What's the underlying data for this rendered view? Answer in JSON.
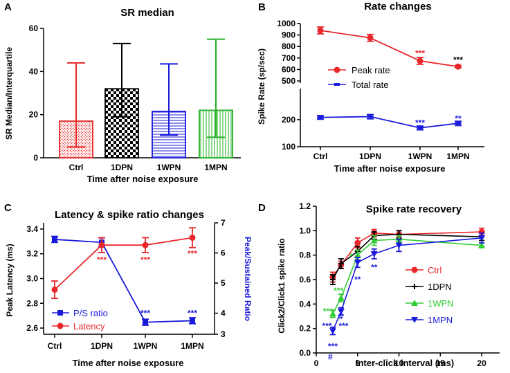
{
  "chart_data": [
    {
      "panel": "A",
      "type": "bar",
      "title": "SR median",
      "xlabel": "Time after noise exposure",
      "ylabel": "SR Median/Interquartile",
      "ylim": [
        0,
        60
      ],
      "yticks": [
        0,
        20,
        40,
        60
      ],
      "categories": [
        "Ctrl",
        "1DPN",
        "1WPN",
        "1MPN"
      ],
      "values": [
        17,
        32,
        21.5,
        22
      ],
      "err_low": [
        5,
        19,
        10.5,
        9.5
      ],
      "err_high": [
        44,
        53,
        43.5,
        55
      ],
      "colors": [
        "#e8272a",
        "#000000",
        "#1a1adb",
        "#22b022"
      ],
      "patterns": [
        "dots",
        "checker",
        "hlines",
        "vlines"
      ]
    },
    {
      "panel": "B",
      "type": "line",
      "title": "Rate changes",
      "xlabel": "Time after noise exposure",
      "ylabel": "Spike Rate (sp/sec)",
      "categories": [
        "Ctrl",
        "1DPN",
        "1WPN",
        "1MPN"
      ],
      "upper_ylim": [
        500,
        1000
      ],
      "upper_yticks": [
        500,
        600,
        700,
        800,
        900,
        1000
      ],
      "lower_ylim": [
        100,
        300
      ],
      "lower_yticks": [
        100,
        200
      ],
      "series": [
        {
          "name": "Peak rate",
          "color": "#e8272a",
          "marker": "circle",
          "values": [
            940,
            875,
            675,
            625
          ],
          "err": [
            30,
            30,
            30,
            10
          ]
        },
        {
          "name": "Total rate",
          "color": "#1a1adb",
          "marker": "dash",
          "values": [
            212,
            216,
            162,
            182
          ],
          "err": [
            10,
            12,
            8,
            10
          ]
        }
      ],
      "annotations": [
        {
          "text": "***",
          "x": "1WPN",
          "y": 740,
          "color": "#e8272a"
        },
        {
          "text": "***",
          "x": "1MPN",
          "y": 685,
          "color": "#000000"
        },
        {
          "text": "***",
          "x": "1WPN",
          "y": 185,
          "color": "#1a1adb"
        },
        {
          "text": "**",
          "x": "1MPN",
          "y": 205,
          "color": "#1a1adb"
        }
      ]
    },
    {
      "panel": "C",
      "type": "line",
      "title": "Latency & spike ratio changes",
      "xlabel": "Time after noise exposure",
      "ylabel": "Peak Latency (ms)",
      "ylabel_right": "Peak/Sustained Ratio",
      "categories": [
        "Ctrl",
        "1DPN",
        "1WPN",
        "1MPN"
      ],
      "ylim": [
        2.55,
        3.45
      ],
      "yticks": [
        2.6,
        2.8,
        3.0,
        3.2,
        3.4
      ],
      "yticklabels": [
        "2.6",
        "2.8",
        "3.0",
        "3.2",
        "3.4"
      ],
      "ylim_right": [
        3.3,
        7.0
      ],
      "yticks_right": [
        3,
        4,
        5,
        6,
        7
      ],
      "series": [
        {
          "name": "P/S ratio",
          "axis": "right",
          "color": "#1a1adb",
          "marker": "square",
          "values": [
            6.45,
            6.35,
            3.7,
            3.75
          ],
          "err": [
            0.1,
            0.15,
            0.1,
            0.1
          ]
        },
        {
          "name": "Latency",
          "axis": "left",
          "color": "#e8272a",
          "marker": "circle",
          "values": [
            2.91,
            3.27,
            3.27,
            3.33
          ],
          "err": [
            0.07,
            0.06,
            0.06,
            0.08
          ]
        }
      ],
      "annotations": [
        {
          "text": "***",
          "x": "1DPN",
          "y": 3.15,
          "color": "#e8272a"
        },
        {
          "text": "***",
          "x": "1WPN",
          "y": 3.15,
          "color": "#e8272a"
        },
        {
          "text": "***",
          "x": "1MPN",
          "y": 3.2,
          "color": "#e8272a"
        },
        {
          "text": "***",
          "x": "1WPN",
          "y": 2.72,
          "color": "#1a1adb"
        },
        {
          "text": "***",
          "x": "1MPN",
          "y": 2.72,
          "color": "#1a1adb"
        }
      ]
    },
    {
      "panel": "D",
      "type": "line",
      "title": "Spike rate recovery",
      "xlabel": "Inter-click interval (ms)",
      "ylabel": "Click2/Click1 spike ratio",
      "xlim": [
        0,
        22
      ],
      "xticks": [
        0,
        5,
        10,
        15,
        20
      ],
      "ylim": [
        0,
        1.2
      ],
      "yticks": [
        0.0,
        0.2,
        0.4,
        0.6,
        0.8,
        1.0,
        1.2
      ],
      "yticklabels": [
        "0.0",
        "0.2",
        "0.4",
        "0.6",
        "0.8",
        "1.0",
        "1.2"
      ],
      "x": [
        2,
        3,
        5,
        7,
        10,
        20
      ],
      "series": [
        {
          "name": "Ctrl",
          "color": "#e8272a",
          "marker": "circle",
          "values": [
            0.62,
            0.72,
            0.9,
            0.98,
            0.97,
            0.99
          ],
          "err": [
            0.04,
            0.03,
            0.04,
            0.03,
            0.03,
            0.03
          ]
        },
        {
          "name": "1DPN",
          "color": "#000000",
          "marker": "plus",
          "values": [
            0.6,
            0.73,
            0.83,
            0.96,
            0.97,
            0.95
          ],
          "err": [
            0.04,
            0.04,
            0.04,
            0.03,
            0.03,
            0.03
          ]
        },
        {
          "name": "1WPN",
          "color": "#33cc33",
          "marker": "triangle",
          "values": [
            0.32,
            0.45,
            0.8,
            0.92,
            0.93,
            0.88
          ],
          "err": [
            0.03,
            0.03,
            0.04,
            0.04,
            0.03,
            0.02
          ]
        },
        {
          "name": "1MPN",
          "color": "#1a1adb",
          "marker": "triangle-down",
          "values": [
            0.18,
            0.34,
            0.74,
            0.81,
            0.88,
            0.94
          ],
          "err": [
            0.03,
            0.03,
            0.04,
            0.04,
            0.05,
            0.04
          ]
        }
      ],
      "annotations": [
        {
          "text": "***",
          "x": 1.4,
          "y": 0.34,
          "color": "#33cc33"
        },
        {
          "text": "***",
          "x": 2.7,
          "y": 0.51,
          "color": "#33cc33"
        },
        {
          "text": "*",
          "x": 4.2,
          "y": 0.79,
          "color": "#33cc33"
        },
        {
          "text": "***",
          "x": 1.3,
          "y": 0.22,
          "color": "#1a1adb"
        },
        {
          "text": "***",
          "x": 2.0,
          "y": 0.055,
          "color": "#1a1adb"
        },
        {
          "text": "#",
          "x": 1.7,
          "y": -0.03,
          "color": "#1a1adb"
        },
        {
          "text": "***",
          "x": 3.3,
          "y": 0.22,
          "color": "#1a1adb"
        },
        {
          "text": "#",
          "x": 3.0,
          "y": 0.3,
          "color": "#1a1adb"
        },
        {
          "text": "**",
          "x": 5.0,
          "y": 0.6,
          "color": "#1a1adb"
        },
        {
          "text": "**",
          "x": 7.0,
          "y": 0.7,
          "color": "#1a1adb"
        }
      ]
    }
  ]
}
